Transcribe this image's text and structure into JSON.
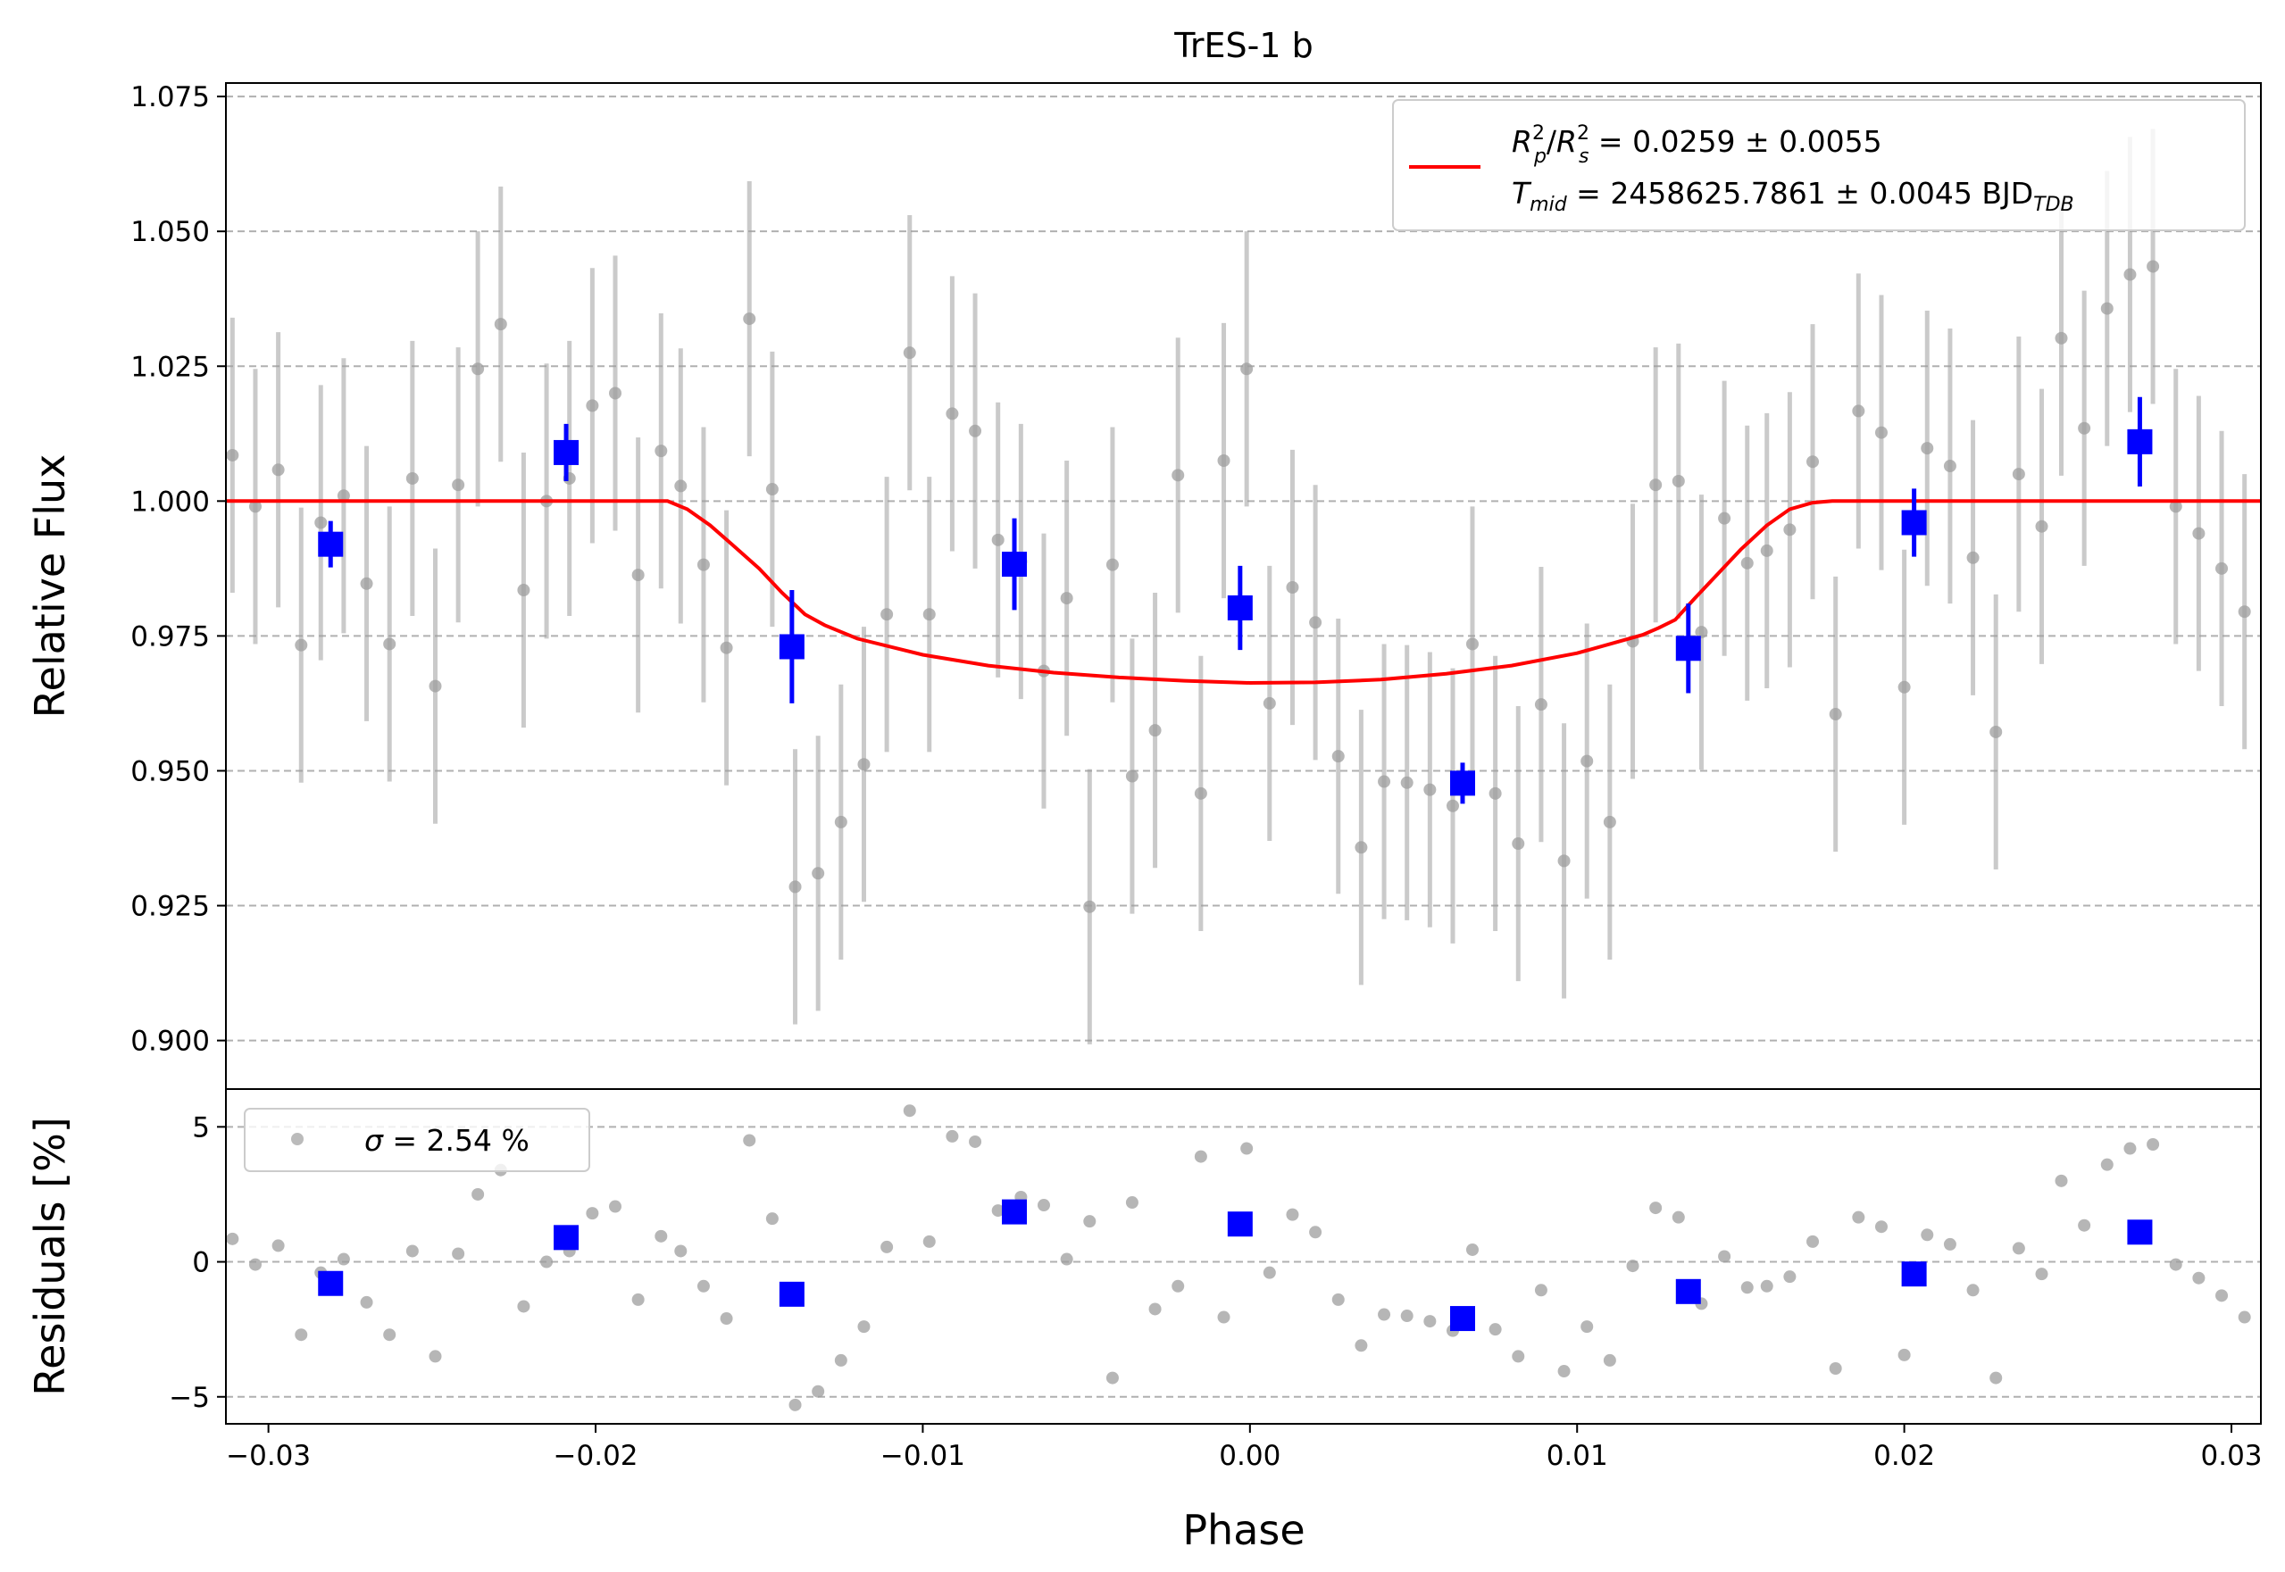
{
  "chart_data": {
    "type": "scatter",
    "title": "TrES-1 b",
    "xlabel": "Phase",
    "xlim": [
      -0.0313,
      0.0309
    ],
    "x_ticks": [
      "−0.03",
      "−0.02",
      "−0.01",
      "0.00",
      "0.01",
      "0.02",
      "0.03"
    ],
    "x_tick_values": [
      -0.03,
      -0.02,
      -0.01,
      0.0,
      0.01,
      0.02,
      0.03
    ],
    "grid": "horizontal dashed",
    "colors": {
      "raw": "#9e9e9e",
      "binned": "#0000ff",
      "model": "#ff0000",
      "grid": "#b0b0b0"
    },
    "top_panel": {
      "ylabel": "Relative Flux",
      "ylim": [
        0.891,
        1.0775
      ],
      "y_ticks": [
        "0.900",
        "0.925",
        "0.950",
        "0.975",
        "1.000",
        "1.025",
        "1.050",
        "1.075"
      ],
      "y_tick_values": [
        0.9,
        0.925,
        0.95,
        0.975,
        1.0,
        1.025,
        1.05,
        1.075
      ],
      "legend": {
        "position": "upper right",
        "line1": "R_p^2/R_s^2 = 0.0259 ± 0.0055",
        "line2": "T_mid = 2458625.7861 ± 0.0045 BJD_TDB"
      },
      "model": {
        "x": [
          -0.0313,
          -0.0178,
          -0.0172,
          -0.0165,
          -0.0158,
          -0.015,
          -0.0143,
          -0.0136,
          -0.013,
          -0.012,
          -0.01,
          -0.008,
          -0.006,
          -0.004,
          -0.002,
          0.0,
          0.002,
          0.004,
          0.006,
          0.008,
          0.01,
          0.012,
          0.0125,
          0.013,
          0.0136,
          0.0143,
          0.015,
          0.0158,
          0.0165,
          0.0172,
          0.0178,
          0.0309
        ],
        "y": [
          1.0,
          1.0,
          0.9985,
          0.9955,
          0.9918,
          0.9875,
          0.983,
          0.979,
          0.977,
          0.9745,
          0.9715,
          0.9695,
          0.9682,
          0.9673,
          0.9667,
          0.9663,
          0.9664,
          0.9669,
          0.968,
          0.9695,
          0.9718,
          0.9752,
          0.9765,
          0.978,
          0.982,
          0.9865,
          0.991,
          0.9955,
          0.9985,
          0.9997,
          1.0,
          1.0
        ]
      },
      "raw": {
        "x": [
          -0.0311,
          -0.0304,
          -0.0297,
          -0.029,
          -0.0284,
          -0.0277,
          -0.027,
          -0.0263,
          -0.0256,
          -0.0249,
          -0.0242,
          -0.0236,
          -0.0229,
          -0.0222,
          -0.0215,
          -0.0208,
          -0.0201,
          -0.0194,
          -0.0187,
          -0.018,
          -0.0174,
          -0.0167,
          -0.016,
          -0.0153,
          -0.0146,
          -0.0139,
          -0.0132,
          -0.0125,
          -0.0118,
          -0.0111,
          -0.0104,
          -0.0098,
          -0.0091,
          -0.0084,
          -0.0077,
          -0.007,
          -0.0063,
          -0.0056,
          -0.0049,
          -0.0042,
          -0.0036,
          -0.0029,
          -0.0022,
          -0.0015,
          -0.0008,
          -0.0001,
          0.0006,
          0.0013,
          0.002,
          0.0027,
          0.0034,
          0.0041,
          0.0048,
          0.0055,
          0.0062,
          0.0068,
          0.0075,
          0.0082,
          0.0089,
          0.0096,
          0.0103,
          0.011,
          0.0117,
          0.0124,
          0.0131,
          0.0138,
          0.0145,
          0.0152,
          0.0158,
          0.0165,
          0.0172,
          0.0179,
          0.0186,
          0.0193,
          0.02,
          0.0207,
          0.0214,
          0.0221,
          0.0228,
          0.0235,
          0.0242,
          0.0248,
          0.0255,
          0.0262,
          0.0269,
          0.0276,
          0.0283,
          0.029,
          0.0297,
          0.0304,
          0.0311
        ],
        "y": [
          1.0085,
          0.999,
          1.0058,
          0.9733,
          0.996,
          1.001,
          0.9847,
          0.9735,
          1.0042,
          0.9657,
          1.003,
          1.0245,
          1.0328,
          0.9835,
          1.0,
          1.0042,
          1.0177,
          1.02,
          0.9863,
          1.0093,
          1.0028,
          0.9882,
          0.9728,
          1.0338,
          1.0022,
          0.9285,
          0.931,
          0.9405,
          0.9512,
          0.979,
          1.0275,
          0.979,
          1.0162,
          1.013,
          0.9928,
          0.9888,
          0.9685,
          0.982,
          0.9248,
          0.9882,
          0.949,
          0.9575,
          1.0048,
          0.9458,
          1.0075,
          1.0245,
          0.9625,
          0.984,
          0.9775,
          0.9527,
          0.9358,
          0.948,
          0.9478,
          0.9465,
          0.9435,
          0.9735,
          0.9458,
          0.9365,
          0.9623,
          0.9333,
          0.9518,
          0.9405,
          0.974,
          1.003,
          1.0037,
          0.9757,
          0.9968,
          0.9885,
          0.9908,
          0.9947,
          1.0073,
          0.9605,
          1.0167,
          1.0127,
          0.9655,
          1.0098,
          1.0065,
          0.9895,
          0.9572,
          1.005,
          0.9953,
          1.0302,
          1.0135,
          1.0357,
          1.042,
          1.0435,
          0.999,
          0.994,
          0.9875,
          0.9795,
          0.9795
        ],
        "err": 0.0255
      },
      "binned": {
        "x": [
          -0.0281,
          -0.0209,
          -0.014,
          -0.0072,
          -0.0003,
          0.0065,
          0.0134,
          0.0203,
          0.0272
        ],
        "y": [
          0.992,
          1.009,
          0.973,
          0.9883,
          0.9802,
          0.9477,
          0.9727,
          0.996,
          1.011
        ],
        "err": [
          0.0043,
          0.0053,
          0.0105,
          0.0085,
          0.0078,
          0.0038,
          0.0083,
          0.0063,
          0.0083
        ]
      }
    },
    "bottom_panel": {
      "ylabel": "Residuals [%]",
      "ylim": [
        -6.0,
        6.4
      ],
      "y_ticks": [
        "−5",
        "0",
        "5"
      ],
      "y_tick_values": [
        -5,
        0,
        5
      ],
      "legend": {
        "position": "upper left",
        "text": "σ = 2.54 %"
      },
      "raw": {
        "x": [
          -0.0311,
          -0.0304,
          -0.0297,
          -0.029,
          -0.0284,
          -0.0277,
          -0.027,
          -0.0263,
          -0.0256,
          -0.0249,
          -0.0242,
          -0.0236,
          -0.0229,
          -0.0222,
          -0.0215,
          -0.0208,
          -0.0201,
          -0.0194,
          -0.0187,
          -0.018,
          -0.0174,
          -0.0167,
          -0.016,
          -0.0153,
          -0.0146,
          -0.0139,
          -0.0132,
          -0.0125,
          -0.0118,
          -0.0111,
          -0.0104,
          -0.0098,
          -0.0091,
          -0.0084,
          -0.0077,
          -0.007,
          -0.0063,
          -0.0056,
          -0.0049,
          -0.0042,
          -0.0036,
          -0.0029,
          -0.0022,
          -0.0015,
          -0.0008,
          -0.0001,
          0.0006,
          0.0013,
          0.002,
          0.0027,
          0.0034,
          0.0041,
          0.0048,
          0.0055,
          0.0062,
          0.0068,
          0.0075,
          0.0082,
          0.0089,
          0.0096,
          0.0103,
          0.011,
          0.0117,
          0.0124,
          0.0131,
          0.0138,
          0.0145,
          0.0152,
          0.0158,
          0.0165,
          0.0172,
          0.0179,
          0.0186,
          0.0193,
          0.02,
          0.0207,
          0.0214,
          0.0221,
          0.0228,
          0.0235,
          0.0242,
          0.0248,
          0.0255,
          0.0262,
          0.0269,
          0.0276,
          0.0283,
          0.029,
          0.0297,
          0.0304,
          0.0311
        ],
        "y": [
          0.85,
          -0.1,
          0.6,
          -2.7,
          -0.4,
          0.1,
          -1.5,
          -2.7,
          0.4,
          -3.5,
          0.3,
          2.5,
          3.4,
          -1.65,
          0.0,
          0.4,
          1.8,
          2.05,
          -1.4,
          0.95,
          0.4,
          -0.9,
          -2.1,
          4.5,
          1.6,
          -5.3,
          -4.8,
          -3.65,
          -2.4,
          0.55,
          5.6,
          0.75,
          4.65,
          4.45,
          1.9,
          2.4,
          2.1,
          0.1,
          1.5,
          -4.3,
          2.2,
          -1.75,
          -0.9,
          3.9,
          -2.05,
          4.2,
          -0.4,
          1.75,
          1.1,
          -1.4,
          -3.1,
          -1.95,
          -2.0,
          -2.2,
          -2.55,
          0.45,
          -2.5,
          -3.5,
          -1.05,
          -4.05,
          -2.4,
          -3.65,
          -0.15,
          2.0,
          1.65,
          -1.55,
          0.2,
          -0.95,
          -0.9,
          -0.55,
          0.75,
          -3.95,
          1.65,
          1.3,
          -3.45,
          1.0,
          0.65,
          -1.05,
          -4.3,
          0.5,
          -0.45,
          3.0,
          1.35,
          3.6,
          4.2,
          4.35,
          -0.1,
          -0.6,
          -1.25,
          -2.05,
          -2.05
        ]
      },
      "binned": {
        "x": [
          -0.0281,
          -0.0209,
          -0.014,
          -0.0072,
          -0.0003,
          0.0065,
          0.0134,
          0.0203,
          0.0272
        ],
        "y": [
          -0.8,
          0.9,
          -1.2,
          1.85,
          1.4,
          -2.1,
          -1.1,
          -0.45,
          1.1
        ]
      }
    }
  }
}
